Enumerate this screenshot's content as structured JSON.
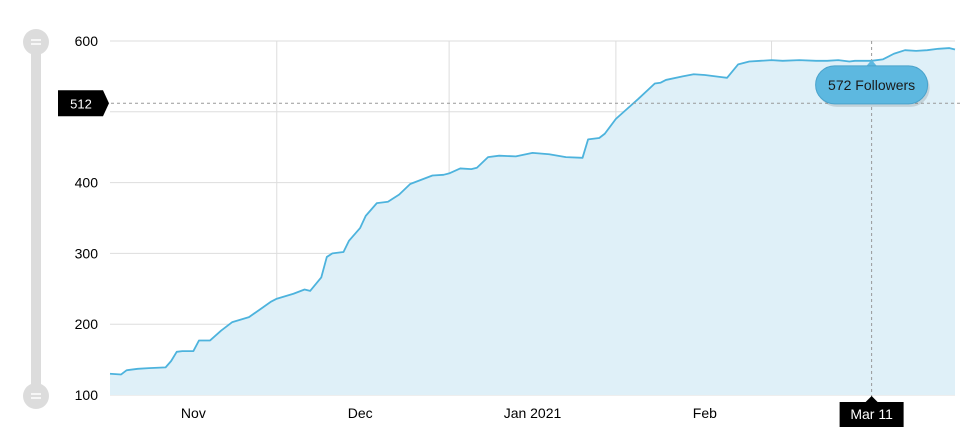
{
  "chart_data": {
    "type": "area",
    "title": "",
    "xlabel": "",
    "ylabel": "",
    "ylim": [
      100,
      600
    ],
    "xlim": [
      "2020-10-25",
      "2021-03-26"
    ],
    "yticks": [
      100,
      200,
      300,
      400,
      500,
      600
    ],
    "ytick_labels": [
      "100",
      "200",
      "300",
      "400",
      "",
      "600"
    ],
    "xtick_labels": [
      {
        "label": "Nov",
        "date": "2020-11-09"
      },
      {
        "label": "Dec",
        "date": "2020-12-09"
      },
      {
        "label": "Jan 2021",
        "date": "2021-01-09"
      },
      {
        "label": "Feb",
        "date": "2021-02-09"
      },
      {
        "label": "Mar",
        "date": "2021-03-09"
      }
    ],
    "vertical_gridlines": [
      "2020-11-24",
      "2020-12-25",
      "2021-01-24",
      "2021-02-21"
    ],
    "grid": true,
    "series": [
      {
        "name": "Followers",
        "color": "#4db3dd",
        "fill": "#dff0f8",
        "x": [
          "2020-10-25",
          "2020-10-27",
          "2020-10-28",
          "2020-10-30",
          "2020-11-01",
          "2020-11-04",
          "2020-11-05",
          "2020-11-06",
          "2020-11-07",
          "2020-11-09",
          "2020-11-10",
          "2020-11-12",
          "2020-11-14",
          "2020-11-15",
          "2020-11-16",
          "2020-11-19",
          "2020-11-21",
          "2020-11-23",
          "2020-11-24",
          "2020-11-27",
          "2020-11-29",
          "2020-11-30",
          "2020-12-02",
          "2020-12-03",
          "2020-12-04",
          "2020-12-06",
          "2020-12-07",
          "2020-12-09",
          "2020-12-10",
          "2020-12-12",
          "2020-12-14",
          "2020-12-16",
          "2020-12-18",
          "2020-12-19",
          "2020-12-22",
          "2020-12-24",
          "2020-12-25",
          "2020-12-27",
          "2020-12-29",
          "2020-12-30",
          "2021-01-01",
          "2021-01-03",
          "2021-01-06",
          "2021-01-09",
          "2021-01-12",
          "2021-01-15",
          "2021-01-18",
          "2021-01-19",
          "2021-01-21",
          "2021-01-22",
          "2021-01-24",
          "2021-01-28",
          "2021-01-31",
          "2021-02-01",
          "2021-02-02",
          "2021-02-05",
          "2021-02-07",
          "2021-02-09",
          "2021-02-12",
          "2021-02-13",
          "2021-02-15",
          "2021-02-17",
          "2021-02-19",
          "2021-02-21",
          "2021-02-23",
          "2021-02-26",
          "2021-03-01",
          "2021-03-03",
          "2021-03-05",
          "2021-03-07",
          "2021-03-08",
          "2021-03-09",
          "2021-03-11",
          "2021-03-13",
          "2021-03-15",
          "2021-03-17",
          "2021-03-19",
          "2021-03-21",
          "2021-03-23",
          "2021-03-25",
          "2021-03-26"
        ],
        "values": [
          130,
          129,
          135,
          137,
          138,
          139,
          148,
          161,
          162,
          162,
          177,
          177,
          191,
          197,
          203,
          210,
          221,
          232,
          236,
          243,
          249,
          247,
          266,
          295,
          300,
          302,
          318,
          336,
          353,
          371,
          373,
          383,
          398,
          401,
          410,
          411,
          413,
          420,
          419,
          421,
          436,
          438,
          437,
          442,
          440,
          436,
          435,
          461,
          463,
          469,
          490,
          518,
          540,
          541,
          545,
          550,
          553,
          552,
          549,
          548,
          567,
          571,
          572,
          573,
          572,
          573,
          572,
          572,
          573,
          571,
          572,
          572,
          572,
          574,
          582,
          587,
          586,
          587,
          589,
          590,
          588
        ]
      }
    ],
    "crosshair": {
      "y_value": 512,
      "y_label": "512",
      "x_date": "2021-03-11",
      "x_label": "Mar 11"
    },
    "tooltip": {
      "value": 572,
      "text": "572 Followers"
    },
    "colors": {
      "line": "#4db3dd",
      "area": "#dff0f8",
      "tooltip_bg": "#5db8e0",
      "tooltip_border": "#4aa3cc",
      "label_bg": "#000000",
      "grid": "#dddddd",
      "axis_text": "#000000",
      "slider_track": "#dcdcdc"
    }
  }
}
